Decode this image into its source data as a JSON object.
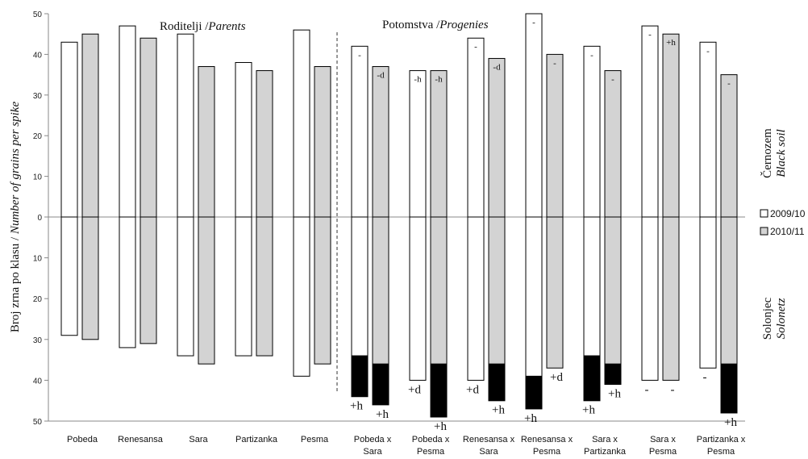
{
  "chart_data": {
    "type": "bar",
    "ylabel": "Broj zrna po klasu / ",
    "ylabel_italic": "Number of grains per spike",
    "ylim": [
      -50,
      50
    ],
    "yticks": [
      "50",
      "40",
      "30",
      "20",
      "10",
      "0",
      "10",
      "20",
      "30",
      "40",
      "50"
    ],
    "sections": [
      {
        "label": "Roditelji /",
        "label_italic": "Parents"
      },
      {
        "label": "Potomstva /",
        "label_italic": "Progenies"
      }
    ],
    "soils": [
      {
        "name": "Černozem",
        "name_italic": "Black soil"
      },
      {
        "name": "Solonjec",
        "name_italic": "Solonetz"
      }
    ],
    "legend": [
      {
        "name": "2009/10",
        "color": "#ffffff"
      },
      {
        "name": "2010/11",
        "color": "#d3d3d3"
      }
    ],
    "colors": {
      "2009/10": "#ffffff",
      "2010/11": "#d3d3d3",
      "black_segment": "#000000"
    },
    "categories": [
      {
        "line1": "Pobeda",
        "line2": "",
        "black_soil": [
          43,
          45
        ],
        "solonetz": [
          29,
          30
        ],
        "solonetz_black_from": [
          null,
          null
        ],
        "ann_top": [
          "",
          ""
        ],
        "ann_bottom": [
          "",
          ""
        ]
      },
      {
        "line1": "Renesansa",
        "line2": "",
        "black_soil": [
          47,
          44
        ],
        "solonetz": [
          32,
          31
        ],
        "solonetz_black_from": [
          null,
          null
        ],
        "ann_top": [
          "",
          ""
        ],
        "ann_bottom": [
          "",
          ""
        ]
      },
      {
        "line1": "Sara",
        "line2": "",
        "black_soil": [
          45,
          37
        ],
        "solonetz": [
          34,
          36
        ],
        "solonetz_black_from": [
          null,
          null
        ],
        "ann_top": [
          "",
          ""
        ],
        "ann_bottom": [
          "",
          ""
        ]
      },
      {
        "line1": "Partizanka",
        "line2": "",
        "black_soil": [
          38,
          36
        ],
        "solonetz": [
          34,
          34
        ],
        "solonetz_black_from": [
          null,
          null
        ],
        "ann_top": [
          "",
          ""
        ],
        "ann_bottom": [
          "",
          ""
        ]
      },
      {
        "line1": "Pesma",
        "line2": "",
        "black_soil": [
          46,
          37
        ],
        "solonetz": [
          39,
          36
        ],
        "solonetz_black_from": [
          null,
          null
        ],
        "ann_top": [
          "",
          ""
        ],
        "ann_bottom": [
          "",
          ""
        ]
      },
      {
        "line1": "Pobeda x",
        "line2": "Sara",
        "black_soil": [
          42,
          37
        ],
        "solonetz": [
          44,
          46
        ],
        "solonetz_black_from": [
          34,
          36
        ],
        "ann_top": [
          "-",
          "-d"
        ],
        "ann_bottom": [
          "+h",
          "+h"
        ]
      },
      {
        "line1": "Pobeda x",
        "line2": "Pesma",
        "black_soil": [
          36,
          36
        ],
        "solonetz": [
          40,
          49
        ],
        "solonetz_black_from": [
          null,
          36
        ],
        "ann_top": [
          "-h",
          "-h"
        ],
        "ann_bottom": [
          "+d",
          "+h"
        ]
      },
      {
        "line1": "Renesansa x",
        "line2": "Sara",
        "black_soil": [
          44,
          39
        ],
        "solonetz": [
          40,
          45
        ],
        "solonetz_black_from": [
          null,
          36
        ],
        "ann_top": [
          "-",
          "-d"
        ],
        "ann_bottom": [
          "+d",
          "+h"
        ]
      },
      {
        "line1": "Renesansa x",
        "line2": "Pesma",
        "black_soil": [
          50,
          40
        ],
        "solonetz": [
          47,
          37
        ],
        "solonetz_black_from": [
          39,
          null
        ],
        "ann_top": [
          "-",
          "-"
        ],
        "ann_bottom": [
          "+h",
          "+d"
        ]
      },
      {
        "line1": "Sara x",
        "line2": "Partizanka",
        "black_soil": [
          42,
          36
        ],
        "solonetz": [
          45,
          41
        ],
        "solonetz_black_from": [
          34,
          36
        ],
        "ann_top": [
          "-",
          "-"
        ],
        "ann_bottom": [
          "+h",
          "+h"
        ]
      },
      {
        "line1": "Sara x",
        "line2": "Pesma",
        "black_soil": [
          47,
          45
        ],
        "solonetz": [
          40,
          40
        ],
        "solonetz_black_from": [
          null,
          null
        ],
        "ann_top": [
          "-",
          "+h"
        ],
        "ann_bottom": [
          "-",
          "-"
        ]
      },
      {
        "line1": "Partizanka x",
        "line2": "Pesma",
        "black_soil": [
          43,
          35
        ],
        "solonetz": [
          37,
          48
        ],
        "solonetz_black_from": [
          null,
          36
        ],
        "ann_top": [
          "-",
          "-"
        ],
        "ann_bottom": [
          "-",
          "+h"
        ]
      }
    ]
  }
}
